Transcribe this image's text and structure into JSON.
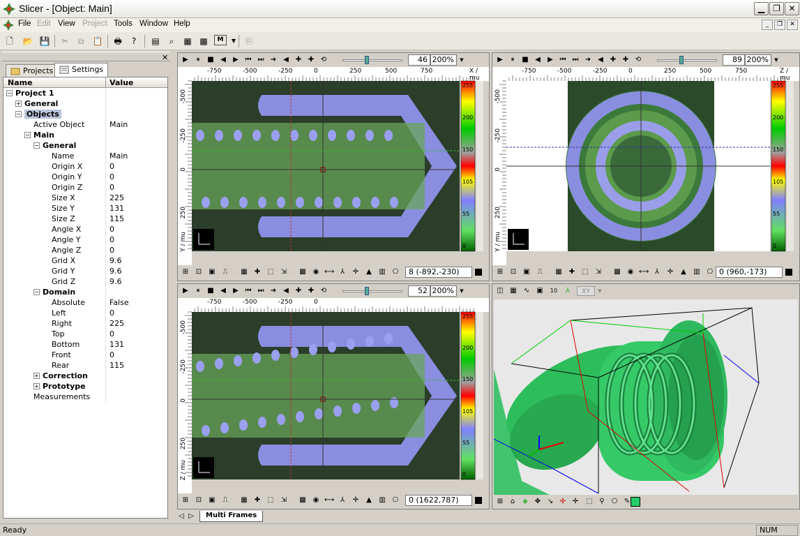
{
  "window": {
    "title": "Slicer - [Object: Main]"
  },
  "menu": [
    "File",
    "Edit",
    "View",
    "Project",
    "Tools",
    "Window",
    "Help"
  ],
  "left_panel": {
    "tabs": [
      "Projects",
      "Settings"
    ],
    "columns": [
      "Name",
      "Value"
    ]
  },
  "tree": [
    {
      "k": "Project 1",
      "v": "",
      "lvl": 0,
      "bold": true,
      "exp": "−"
    },
    {
      "k": "General",
      "v": "",
      "lvl": 1,
      "bold": true,
      "exp": "+"
    },
    {
      "k": "Objects",
      "v": "",
      "lvl": 1,
      "bold": true,
      "exp": "−",
      "sel": true
    },
    {
      "k": "Active Object",
      "v": "Main",
      "lvl": 2
    },
    {
      "k": "Main",
      "v": "",
      "lvl": 2,
      "bold": true,
      "exp": "−"
    },
    {
      "k": "General",
      "v": "",
      "lvl": 3,
      "bold": true,
      "exp": "−"
    },
    {
      "k": "Name",
      "v": "Main",
      "lvl": 4
    },
    {
      "k": "Origin X",
      "v": "0",
      "lvl": 4
    },
    {
      "k": "Origin Y",
      "v": "0",
      "lvl": 4
    },
    {
      "k": "Origin Z",
      "v": "0",
      "lvl": 4
    },
    {
      "k": "Size X",
      "v": "225",
      "lvl": 4
    },
    {
      "k": "Size Y",
      "v": "131",
      "lvl": 4
    },
    {
      "k": "Size Z",
      "v": "115",
      "lvl": 4
    },
    {
      "k": "Angle X",
      "v": "0",
      "lvl": 4
    },
    {
      "k": "Angle Y",
      "v": "0",
      "lvl": 4
    },
    {
      "k": "Angle Z",
      "v": "0",
      "lvl": 4
    },
    {
      "k": "Grid X",
      "v": "9.6",
      "lvl": 4
    },
    {
      "k": "Grid Y",
      "v": "9.6",
      "lvl": 4
    },
    {
      "k": "Grid Z",
      "v": "9.6",
      "lvl": 4
    },
    {
      "k": "Domain",
      "v": "",
      "lvl": 3,
      "bold": true,
      "exp": "−"
    },
    {
      "k": "Absolute",
      "v": "False",
      "lvl": 4
    },
    {
      "k": "Left",
      "v": "0",
      "lvl": 4
    },
    {
      "k": "Right",
      "v": "225",
      "lvl": 4
    },
    {
      "k": "Top",
      "v": "0",
      "lvl": 4
    },
    {
      "k": "Bottom",
      "v": "131",
      "lvl": 4
    },
    {
      "k": "Front",
      "v": "0",
      "lvl": 4
    },
    {
      "k": "Rear",
      "v": "115",
      "lvl": 4
    },
    {
      "k": "Correction",
      "v": "",
      "lvl": 3,
      "bold": true,
      "exp": "+"
    },
    {
      "k": "Prototype",
      "v": "",
      "lvl": 3,
      "bold": true,
      "exp": "+"
    },
    {
      "k": "Measurements",
      "v": "",
      "lvl": 2
    }
  ],
  "viewers": {
    "top_left": {
      "slice": "46",
      "zoom": "200%",
      "axis_unit": "X / mu",
      "v_axis": "Y / mu",
      "coord": "8 (-892,-230)",
      "ticks": [
        "-750",
        "-500",
        "-250",
        "0",
        "250",
        "500",
        "750"
      ],
      "vticks": [
        "-500",
        "-250",
        "0",
        "250"
      ]
    },
    "top_right": {
      "slice": "89",
      "zoom": "200%",
      "axis_unit": "Z / mu",
      "v_axis": "Y / mu",
      "coord": "0 (960,-173)",
      "ticks": [
        "-750",
        "-500",
        "-250",
        "0",
        "250",
        "500",
        "750"
      ],
      "vticks": [
        "-500",
        "-250",
        "0",
        "250"
      ]
    },
    "bottom_left": {
      "slice": "52",
      "zoom": "200%",
      "v_axis": "Z / mu",
      "coord": "0 (1622,787)",
      "ticks": [
        "-750",
        "-500",
        "-250",
        "0"
      ],
      "vticks": [
        "-500",
        "-250",
        "0",
        "250"
      ]
    },
    "bottom_right": {
      "plane": "XY"
    }
  },
  "colorbar_labels": [
    "255",
    "200",
    "150",
    "105",
    "55",
    "0"
  ],
  "colors": {
    "accent_green": "#33cc66",
    "bar_colors": [
      "#ff0000",
      "#ffff00",
      "#00cc00",
      "#8080ff"
    ]
  },
  "bottom_tab": "Multi Frames",
  "status": {
    "left": "Ready",
    "num": "NUM"
  }
}
